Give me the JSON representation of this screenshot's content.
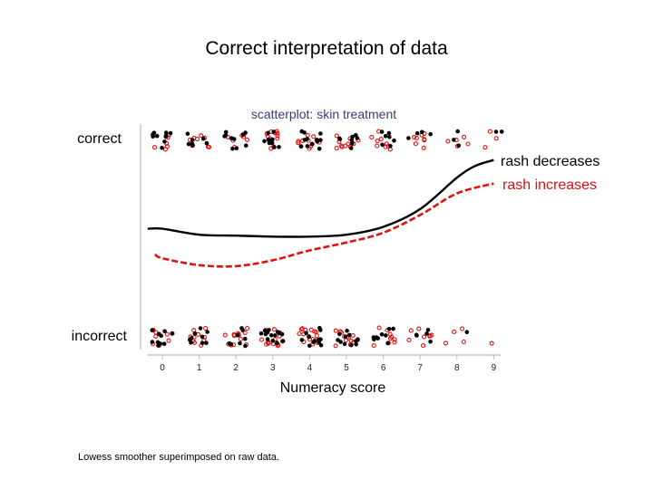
{
  "page_title": "Correct interpretation of data",
  "footnote": "Lowess smoother superimposed on raw data.",
  "colors": {
    "rash_decreases": "#000000",
    "rash_increases": "#dd1111",
    "subtitle": "#3b3b7a",
    "axis": "#bbbbbb"
  },
  "chart_data": {
    "type": "scatter",
    "title": "scatterplot: skin treatment",
    "xlabel": "Numeracy score",
    "ylabel": "",
    "xlim": [
      0,
      9
    ],
    "x_ticks": [
      0,
      1,
      2,
      3,
      4,
      5,
      6,
      7,
      8,
      9
    ],
    "y_categories": [
      "incorrect",
      "correct"
    ],
    "ylim": [
      0,
      1
    ],
    "grid": false,
    "series": [
      {
        "name": "rash decreases",
        "style": "solid",
        "marker": "filled-circle",
        "lowess": [
          [
            -0.4,
            0.55
          ],
          [
            0,
            0.55
          ],
          [
            1,
            0.52
          ],
          [
            2,
            0.515
          ],
          [
            3,
            0.51
          ],
          [
            4,
            0.51
          ],
          [
            5,
            0.52
          ],
          [
            6,
            0.56
          ],
          [
            7,
            0.65
          ],
          [
            8,
            0.81
          ],
          [
            8.5,
            0.87
          ],
          [
            9,
            0.9
          ]
        ],
        "points_correct_counts": [
          9,
          7,
          10,
          10,
          13,
          8,
          7,
          4,
          3,
          2
        ],
        "points_incorrect_counts": [
          10,
          9,
          8,
          14,
          12,
          11,
          9,
          5,
          1,
          0
        ]
      },
      {
        "name": "rash increases",
        "style": "dashed",
        "marker": "open-circle",
        "lowess": [
          [
            -0.2,
            0.42
          ],
          [
            0,
            0.4
          ],
          [
            1,
            0.365
          ],
          [
            2,
            0.36
          ],
          [
            3,
            0.39
          ],
          [
            4,
            0.44
          ],
          [
            5,
            0.48
          ],
          [
            6,
            0.53
          ],
          [
            7,
            0.62
          ],
          [
            8,
            0.73
          ],
          [
            9,
            0.78
          ]
        ],
        "points_correct_counts": [
          7,
          8,
          7,
          11,
          11,
          11,
          9,
          8,
          5,
          3
        ],
        "points_incorrect_counts": [
          9,
          10,
          13,
          15,
          16,
          13,
          9,
          8,
          4,
          1
        ]
      }
    ]
  }
}
